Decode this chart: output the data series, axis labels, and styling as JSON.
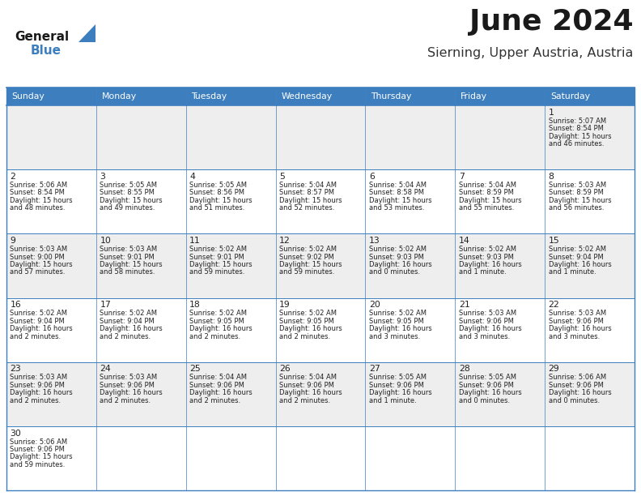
{
  "title": "June 2024",
  "subtitle": "Sierning, Upper Austria, Austria",
  "header_color": "#3d7ebf",
  "header_text_color": "#FFFFFF",
  "days_of_week": [
    "Sunday",
    "Monday",
    "Tuesday",
    "Wednesday",
    "Thursday",
    "Friday",
    "Saturday"
  ],
  "row_colors": [
    "#EEEEEE",
    "#FFFFFF",
    "#EEEEEE",
    "#FFFFFF",
    "#EEEEEE",
    "#FFFFFF"
  ],
  "border_color": "#3d7ebf",
  "text_color": "#222222",
  "day_num_color": "#222222",
  "calendar_data": [
    [
      {
        "day": null,
        "sunrise": null,
        "sunset": null,
        "daylight": null
      },
      {
        "day": null,
        "sunrise": null,
        "sunset": null,
        "daylight": null
      },
      {
        "day": null,
        "sunrise": null,
        "sunset": null,
        "daylight": null
      },
      {
        "day": null,
        "sunrise": null,
        "sunset": null,
        "daylight": null
      },
      {
        "day": null,
        "sunrise": null,
        "sunset": null,
        "daylight": null
      },
      {
        "day": null,
        "sunrise": null,
        "sunset": null,
        "daylight": null
      },
      {
        "day": 1,
        "sunrise": "5:07 AM",
        "sunset": "8:54 PM",
        "daylight": "15 hours\nand 46 minutes."
      }
    ],
    [
      {
        "day": 2,
        "sunrise": "5:06 AM",
        "sunset": "8:54 PM",
        "daylight": "15 hours\nand 48 minutes."
      },
      {
        "day": 3,
        "sunrise": "5:05 AM",
        "sunset": "8:55 PM",
        "daylight": "15 hours\nand 49 minutes."
      },
      {
        "day": 4,
        "sunrise": "5:05 AM",
        "sunset": "8:56 PM",
        "daylight": "15 hours\nand 51 minutes."
      },
      {
        "day": 5,
        "sunrise": "5:04 AM",
        "sunset": "8:57 PM",
        "daylight": "15 hours\nand 52 minutes."
      },
      {
        "day": 6,
        "sunrise": "5:04 AM",
        "sunset": "8:58 PM",
        "daylight": "15 hours\nand 53 minutes."
      },
      {
        "day": 7,
        "sunrise": "5:04 AM",
        "sunset": "8:59 PM",
        "daylight": "15 hours\nand 55 minutes."
      },
      {
        "day": 8,
        "sunrise": "5:03 AM",
        "sunset": "8:59 PM",
        "daylight": "15 hours\nand 56 minutes."
      }
    ],
    [
      {
        "day": 9,
        "sunrise": "5:03 AM",
        "sunset": "9:00 PM",
        "daylight": "15 hours\nand 57 minutes."
      },
      {
        "day": 10,
        "sunrise": "5:03 AM",
        "sunset": "9:01 PM",
        "daylight": "15 hours\nand 58 minutes."
      },
      {
        "day": 11,
        "sunrise": "5:02 AM",
        "sunset": "9:01 PM",
        "daylight": "15 hours\nand 59 minutes."
      },
      {
        "day": 12,
        "sunrise": "5:02 AM",
        "sunset": "9:02 PM",
        "daylight": "15 hours\nand 59 minutes."
      },
      {
        "day": 13,
        "sunrise": "5:02 AM",
        "sunset": "9:03 PM",
        "daylight": "16 hours\nand 0 minutes."
      },
      {
        "day": 14,
        "sunrise": "5:02 AM",
        "sunset": "9:03 PM",
        "daylight": "16 hours\nand 1 minute."
      },
      {
        "day": 15,
        "sunrise": "5:02 AM",
        "sunset": "9:04 PM",
        "daylight": "16 hours\nand 1 minute."
      }
    ],
    [
      {
        "day": 16,
        "sunrise": "5:02 AM",
        "sunset": "9:04 PM",
        "daylight": "16 hours\nand 2 minutes."
      },
      {
        "day": 17,
        "sunrise": "5:02 AM",
        "sunset": "9:04 PM",
        "daylight": "16 hours\nand 2 minutes."
      },
      {
        "day": 18,
        "sunrise": "5:02 AM",
        "sunset": "9:05 PM",
        "daylight": "16 hours\nand 2 minutes."
      },
      {
        "day": 19,
        "sunrise": "5:02 AM",
        "sunset": "9:05 PM",
        "daylight": "16 hours\nand 2 minutes."
      },
      {
        "day": 20,
        "sunrise": "5:02 AM",
        "sunset": "9:05 PM",
        "daylight": "16 hours\nand 3 minutes."
      },
      {
        "day": 21,
        "sunrise": "5:03 AM",
        "sunset": "9:06 PM",
        "daylight": "16 hours\nand 3 minutes."
      },
      {
        "day": 22,
        "sunrise": "5:03 AM",
        "sunset": "9:06 PM",
        "daylight": "16 hours\nand 3 minutes."
      }
    ],
    [
      {
        "day": 23,
        "sunrise": "5:03 AM",
        "sunset": "9:06 PM",
        "daylight": "16 hours\nand 2 minutes."
      },
      {
        "day": 24,
        "sunrise": "5:03 AM",
        "sunset": "9:06 PM",
        "daylight": "16 hours\nand 2 minutes."
      },
      {
        "day": 25,
        "sunrise": "5:04 AM",
        "sunset": "9:06 PM",
        "daylight": "16 hours\nand 2 minutes."
      },
      {
        "day": 26,
        "sunrise": "5:04 AM",
        "sunset": "9:06 PM",
        "daylight": "16 hours\nand 2 minutes."
      },
      {
        "day": 27,
        "sunrise": "5:05 AM",
        "sunset": "9:06 PM",
        "daylight": "16 hours\nand 1 minute."
      },
      {
        "day": 28,
        "sunrise": "5:05 AM",
        "sunset": "9:06 PM",
        "daylight": "16 hours\nand 0 minutes."
      },
      {
        "day": 29,
        "sunrise": "5:06 AM",
        "sunset": "9:06 PM",
        "daylight": "16 hours\nand 0 minutes."
      }
    ],
    [
      {
        "day": 30,
        "sunrise": "5:06 AM",
        "sunset": "9:06 PM",
        "daylight": "15 hours\nand 59 minutes."
      },
      {
        "day": null,
        "sunrise": null,
        "sunset": null,
        "daylight": null
      },
      {
        "day": null,
        "sunrise": null,
        "sunset": null,
        "daylight": null
      },
      {
        "day": null,
        "sunrise": null,
        "sunset": null,
        "daylight": null
      },
      {
        "day": null,
        "sunrise": null,
        "sunset": null,
        "daylight": null
      },
      {
        "day": null,
        "sunrise": null,
        "sunset": null,
        "daylight": null
      },
      {
        "day": null,
        "sunrise": null,
        "sunset": null,
        "daylight": null
      }
    ]
  ]
}
